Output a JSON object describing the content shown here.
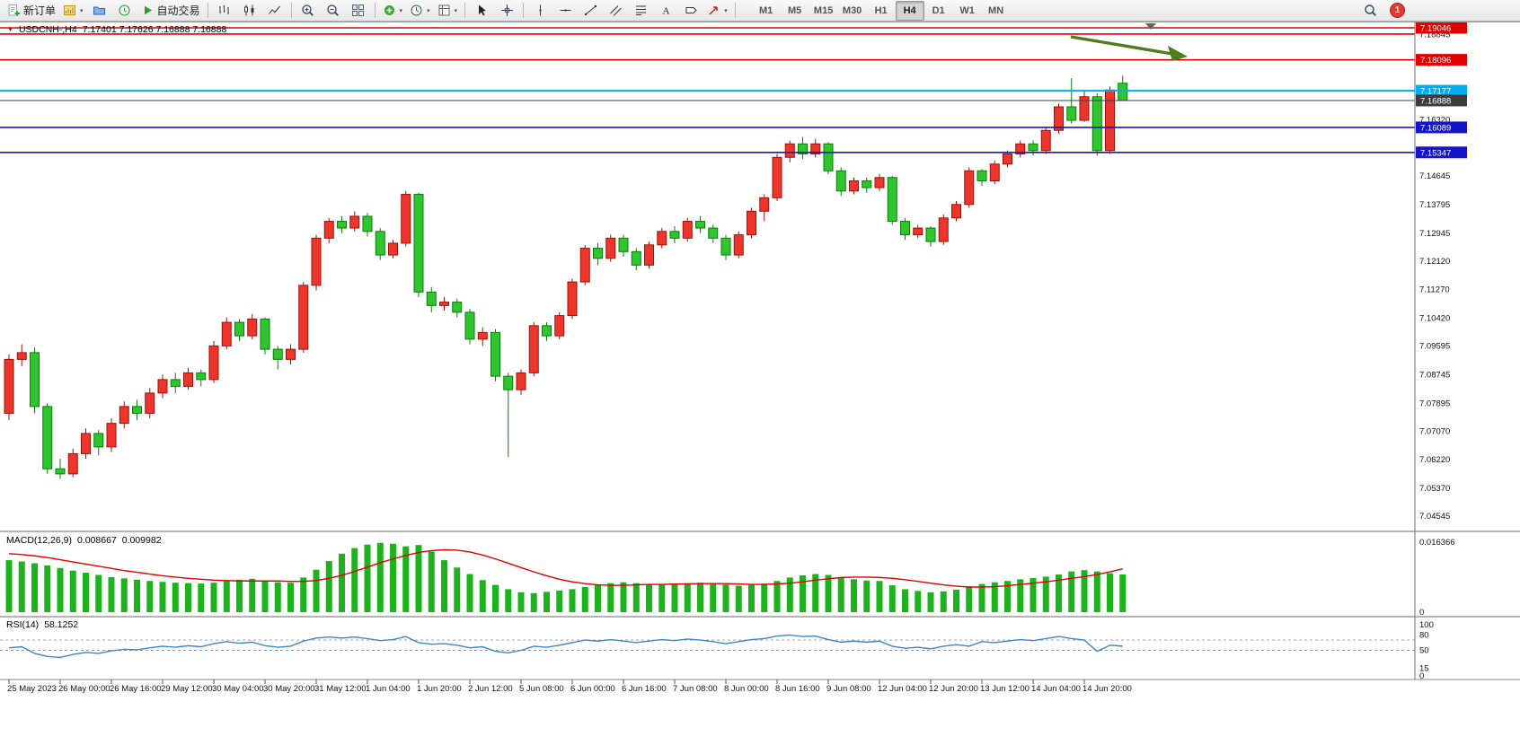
{
  "toolbar": {
    "new_order_label": "新订单",
    "auto_trading_label": "自动交易",
    "timeframes": [
      "M1",
      "M5",
      "M15",
      "M30",
      "H1",
      "H4",
      "D1",
      "W1",
      "MN"
    ],
    "active_timeframe": "H4",
    "notification_count": "1",
    "icons": [
      "new-order",
      "new-chart",
      "profiles",
      "market-watch",
      "auto-trading",
      "bar-chart",
      "candlestick",
      "line-chart",
      "zoom-in",
      "zoom-out",
      "tile-windows",
      "indicators",
      "periods",
      "templates",
      "cursor",
      "crosshair",
      "vertical-line",
      "horizontal-line",
      "trendline",
      "channel",
      "fibonacci",
      "text",
      "label",
      "arrows",
      "search",
      "notifications"
    ]
  },
  "chart": {
    "header": {
      "symbol_period": "USDCNH-,H4",
      "ohlc": "7.17401 7.17626 7.16888 7.16888"
    },
    "axis_labels": [
      "7.18845",
      "7.17995",
      "7.16320",
      "7.14645",
      "7.13795",
      "7.12945",
      "7.12120",
      "7.11270",
      "7.10420",
      "7.09595",
      "7.08745",
      "7.07895",
      "7.07070",
      "7.06220",
      "7.05370",
      "7.04545"
    ],
    "lines": [
      {
        "price": 7.19046,
        "color": "#e00000",
        "width": 1.6,
        "badge": "7.19046"
      },
      {
        "price": 7.1886,
        "color": "#e00000",
        "width": 1.6,
        "badge": null
      },
      {
        "price": 7.18096,
        "color": "#e00000",
        "width": 1.6,
        "badge": "7.18096"
      },
      {
        "price": 7.17177,
        "color": "#00aeef",
        "width": 2,
        "badge": "7.17177"
      },
      {
        "price": 7.16888,
        "color": "#3c3c3c",
        "width": 1,
        "badge": "7.16888"
      },
      {
        "price": 7.16089,
        "color": "#1515c8",
        "width": 1.6,
        "badge": "7.16089"
      },
      {
        "price": 7.15347,
        "color": "#1515c8",
        "width": 1.6,
        "badge": "7.15347"
      }
    ],
    "up_color": "#ee352b",
    "down_color": "#2ec52e",
    "candles": [
      [
        7.076,
        7.0935,
        7.074,
        7.092
      ],
      [
        7.092,
        7.0965,
        7.09,
        7.094
      ],
      [
        7.094,
        7.0955,
        7.076,
        7.078
      ],
      [
        7.078,
        7.079,
        7.058,
        7.0595
      ],
      [
        7.0595,
        7.0625,
        7.0565,
        7.058
      ],
      [
        7.058,
        7.0655,
        7.057,
        7.064
      ],
      [
        7.064,
        7.0715,
        7.0625,
        7.07
      ],
      [
        7.07,
        7.071,
        7.0635,
        7.066
      ],
      [
        7.066,
        7.0745,
        7.0645,
        7.073
      ],
      [
        7.073,
        7.0795,
        7.0715,
        7.078
      ],
      [
        7.078,
        7.08,
        7.074,
        7.076
      ],
      [
        7.076,
        7.0835,
        7.0745,
        7.082
      ],
      [
        7.082,
        7.0875,
        7.0805,
        7.086
      ],
      [
        7.086,
        7.088,
        7.082,
        7.084
      ],
      [
        7.084,
        7.0895,
        7.083,
        7.088
      ],
      [
        7.088,
        7.089,
        7.084,
        7.086
      ],
      [
        7.086,
        7.0975,
        7.085,
        7.096
      ],
      [
        7.096,
        7.1045,
        7.095,
        7.103
      ],
      [
        7.103,
        7.104,
        7.0975,
        7.099
      ],
      [
        7.099,
        7.1055,
        7.098,
        7.104
      ],
      [
        7.104,
        7.1045,
        7.0935,
        7.095
      ],
      [
        7.095,
        7.096,
        7.089,
        7.092
      ],
      [
        7.092,
        7.0965,
        7.0905,
        7.095
      ],
      [
        7.095,
        7.115,
        7.094,
        7.114
      ],
      [
        7.114,
        7.129,
        7.1125,
        7.128
      ],
      [
        7.128,
        7.134,
        7.1265,
        7.133
      ],
      [
        7.133,
        7.1345,
        7.1295,
        7.131
      ],
      [
        7.131,
        7.136,
        7.13,
        7.1345
      ],
      [
        7.1345,
        7.1355,
        7.1285,
        7.13
      ],
      [
        7.13,
        7.131,
        7.1215,
        7.123
      ],
      [
        7.123,
        7.1275,
        7.122,
        7.1265
      ],
      [
        7.1265,
        7.142,
        7.1255,
        7.141
      ],
      [
        7.141,
        7.1415,
        7.1105,
        7.112
      ],
      [
        7.112,
        7.1135,
        7.106,
        7.108
      ],
      [
        7.108,
        7.1105,
        7.1065,
        7.109
      ],
      [
        7.109,
        7.11,
        7.1045,
        7.106
      ],
      [
        7.106,
        7.107,
        7.0965,
        7.098
      ],
      [
        7.098,
        7.1015,
        7.096,
        7.1
      ],
      [
        7.1,
        7.101,
        7.0855,
        7.087
      ],
      [
        7.087,
        7.088,
        7.063,
        7.083
      ],
      [
        7.083,
        7.089,
        7.0815,
        7.088
      ],
      [
        7.088,
        7.103,
        7.087,
        7.102
      ],
      [
        7.102,
        7.103,
        7.0975,
        7.099
      ],
      [
        7.099,
        7.106,
        7.098,
        7.105
      ],
      [
        7.105,
        7.116,
        7.104,
        7.115
      ],
      [
        7.115,
        7.126,
        7.114,
        7.125
      ],
      [
        7.125,
        7.1265,
        7.12,
        7.122
      ],
      [
        7.122,
        7.129,
        7.121,
        7.128
      ],
      [
        7.128,
        7.129,
        7.1225,
        7.124
      ],
      [
        7.124,
        7.125,
        7.1185,
        7.12
      ],
      [
        7.12,
        7.127,
        7.119,
        7.126
      ],
      [
        7.126,
        7.131,
        7.125,
        7.13
      ],
      [
        7.13,
        7.1315,
        7.1265,
        7.128
      ],
      [
        7.128,
        7.134,
        7.127,
        7.133
      ],
      [
        7.133,
        7.1345,
        7.1295,
        7.131
      ],
      [
        7.131,
        7.132,
        7.1265,
        7.128
      ],
      [
        7.128,
        7.129,
        7.1215,
        7.123
      ],
      [
        7.123,
        7.13,
        7.122,
        7.129
      ],
      [
        7.129,
        7.137,
        7.128,
        7.136
      ],
      [
        7.136,
        7.141,
        7.133,
        7.14
      ],
      [
        7.14,
        7.153,
        7.139,
        7.152
      ],
      [
        7.152,
        7.157,
        7.1505,
        7.156
      ],
      [
        7.156,
        7.158,
        7.1515,
        7.153
      ],
      [
        7.153,
        7.1575,
        7.152,
        7.156
      ],
      [
        7.156,
        7.1565,
        7.147,
        7.148
      ],
      [
        7.148,
        7.149,
        7.1405,
        7.142
      ],
      [
        7.142,
        7.146,
        7.141,
        7.145
      ],
      [
        7.145,
        7.146,
        7.1415,
        7.143
      ],
      [
        7.143,
        7.147,
        7.142,
        7.146
      ],
      [
        7.146,
        7.1465,
        7.132,
        7.133
      ],
      [
        7.133,
        7.134,
        7.1275,
        7.129
      ],
      [
        7.129,
        7.132,
        7.128,
        7.131
      ],
      [
        7.131,
        7.1315,
        7.1255,
        7.127
      ],
      [
        7.127,
        7.135,
        7.126,
        7.134
      ],
      [
        7.134,
        7.139,
        7.133,
        7.138
      ],
      [
        7.138,
        7.149,
        7.137,
        7.148
      ],
      [
        7.148,
        7.1485,
        7.1435,
        7.145
      ],
      [
        7.145,
        7.151,
        7.144,
        7.15
      ],
      [
        7.15,
        7.154,
        7.149,
        7.153
      ],
      [
        7.153,
        7.157,
        7.152,
        7.156
      ],
      [
        7.156,
        7.157,
        7.1525,
        7.154
      ],
      [
        7.154,
        7.161,
        7.153,
        7.16
      ],
      [
        7.16,
        7.168,
        7.159,
        7.167
      ],
      [
        7.167,
        7.1755,
        7.162,
        7.163
      ],
      [
        7.163,
        7.172,
        7.1625,
        7.17
      ],
      [
        7.17,
        7.171,
        7.1525,
        7.154
      ],
      [
        7.154,
        7.173,
        7.153,
        7.172
      ],
      [
        7.17401,
        7.17626,
        7.16888,
        7.16888
      ]
    ],
    "time_labels": [
      "25 May 2023",
      "26 May 00:00",
      "26 May 16:00",
      "29 May 12:00",
      "30 May 04:00",
      "30 May 20:00",
      "31 May 12:00",
      "1 Jun 04:00",
      "1 Jun 20:00",
      "2 Jun 12:00",
      "5 Jun 08:00",
      "6 Jun 00:00",
      "6 Jun 16:00",
      "7 Jun 08:00",
      "8 Jun 00:00",
      "8 Jun 16:00",
      "9 Jun 08:00",
      "12 Jun 04:00",
      "12 Jun 20:00",
      "13 Jun 12:00",
      "14 Jun 04:00",
      "14 Jun 20:00"
    ]
  },
  "macd": {
    "name": "MACD(12,26,9)",
    "value_main": "0.008667",
    "value_signal": "0.009982",
    "scale_top": "0.016366",
    "scale_bottom": "0",
    "hist_color": "#1db31d",
    "signal_color": "#e00000",
    "hist": [
      0.012,
      0.0117,
      0.0113,
      0.0108,
      0.0102,
      0.0096,
      0.0091,
      0.0086,
      0.0081,
      0.0078,
      0.0075,
      0.0072,
      0.007,
      0.0068,
      0.0067,
      0.0066,
      0.0068,
      0.0072,
      0.0075,
      0.0077,
      0.0073,
      0.0069,
      0.0068,
      0.008,
      0.0098,
      0.0118,
      0.0135,
      0.0148,
      0.0156,
      0.016,
      0.0158,
      0.0152,
      0.0155,
      0.014,
      0.012,
      0.0103,
      0.0088,
      0.0074,
      0.0063,
      0.0053,
      0.0046,
      0.0044,
      0.0047,
      0.005,
      0.0053,
      0.0058,
      0.0064,
      0.0067,
      0.0069,
      0.0067,
      0.0064,
      0.0064,
      0.0066,
      0.0067,
      0.0068,
      0.0067,
      0.0064,
      0.0061,
      0.0063,
      0.0066,
      0.0072,
      0.008,
      0.0085,
      0.0088,
      0.0086,
      0.008,
      0.0076,
      0.0073,
      0.0072,
      0.0062,
      0.0053,
      0.0049,
      0.0046,
      0.0048,
      0.0052,
      0.006,
      0.0065,
      0.0069,
      0.0072,
      0.0076,
      0.0079,
      0.0082,
      0.0087,
      0.0094,
      0.0097,
      0.0094,
      0.009,
      0.0087
    ],
    "signal": [
      0.0135,
      0.0133,
      0.013,
      0.0126,
      0.0121,
      0.0116,
      0.0111,
      0.0106,
      0.0101,
      0.0096,
      0.0092,
      0.0088,
      0.0084,
      0.0081,
      0.0078,
      0.0076,
      0.0074,
      0.0073,
      0.0072,
      0.0072,
      0.0072,
      0.0072,
      0.0071,
      0.0071,
      0.0073,
      0.0078,
      0.0085,
      0.0094,
      0.0104,
      0.0114,
      0.0123,
      0.0131,
      0.0138,
      0.0142,
      0.0144,
      0.0143,
      0.0139,
      0.0132,
      0.0123,
      0.0113,
      0.0103,
      0.0093,
      0.0084,
      0.0076,
      0.007,
      0.0066,
      0.0063,
      0.0062,
      0.0062,
      0.0063,
      0.0064,
      0.0064,
      0.0065,
      0.0065,
      0.0066,
      0.0066,
      0.0066,
      0.0065,
      0.0064,
      0.0064,
      0.0065,
      0.0067,
      0.007,
      0.0074,
      0.0077,
      0.008,
      0.0081,
      0.0081,
      0.008,
      0.0078,
      0.0075,
      0.0071,
      0.0067,
      0.0063,
      0.006,
      0.0058,
      0.0058,
      0.0059,
      0.0061,
      0.0064,
      0.0067,
      0.007,
      0.0074,
      0.0078,
      0.0082,
      0.0087,
      0.0093,
      0.01
    ]
  },
  "rsi": {
    "name": "RSI(14)",
    "value": "58.1252",
    "line_color": "#3d85c8",
    "scale_labels": [
      "100",
      "80",
      "50",
      "15",
      "0"
    ],
    "levels": [
      70,
      50
    ],
    "values": [
      55,
      57,
      44,
      38,
      36,
      42,
      46,
      44,
      49,
      52,
      51,
      55,
      58,
      56,
      59,
      57,
      63,
      67,
      64,
      66,
      59,
      56,
      58,
      68,
      74,
      76,
      74,
      76,
      73,
      69,
      71,
      77,
      65,
      62,
      63,
      60,
      55,
      57,
      48,
      45,
      50,
      58,
      56,
      60,
      65,
      70,
      68,
      71,
      68,
      65,
      68,
      71,
      69,
      72,
      70,
      67,
      63,
      67,
      71,
      73,
      78,
      80,
      77,
      78,
      71,
      66,
      68,
      66,
      68,
      58,
      54,
      56,
      53,
      58,
      61,
      58,
      67,
      65,
      68,
      71,
      69,
      73,
      77,
      73,
      70,
      48,
      60,
      58.1
    ]
  },
  "annotation": {
    "type": "arrow",
    "color": "#4e7d1e"
  }
}
